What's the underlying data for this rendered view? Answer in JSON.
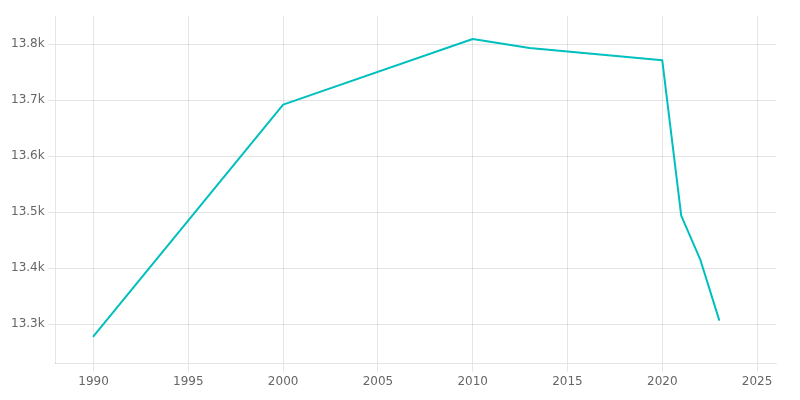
{
  "chart_data": {
    "type": "line",
    "x": [
      1990,
      2000,
      2010,
      2013,
      2020,
      2021,
      2022,
      2023
    ],
    "values": [
      13279,
      13692,
      13809,
      13793,
      13771,
      13494,
      13416,
      13308
    ],
    "color": "#00BFBF",
    "xlim": [
      1988,
      2026
    ],
    "xticks": [
      1990,
      1995,
      2000,
      2005,
      2010,
      2015,
      2020,
      2025
    ],
    "ylim": [
      13230,
      13850
    ],
    "yticks": [
      {
        "value": 13300,
        "label": "13.3k"
      },
      {
        "value": 13400,
        "label": "13.4k"
      },
      {
        "value": 13500,
        "label": "13.5k"
      },
      {
        "value": 13600,
        "label": "13.6k"
      },
      {
        "value": 13700,
        "label": "13.7k"
      },
      {
        "value": 13800,
        "label": "13.8k"
      }
    ],
    "grid": true
  }
}
